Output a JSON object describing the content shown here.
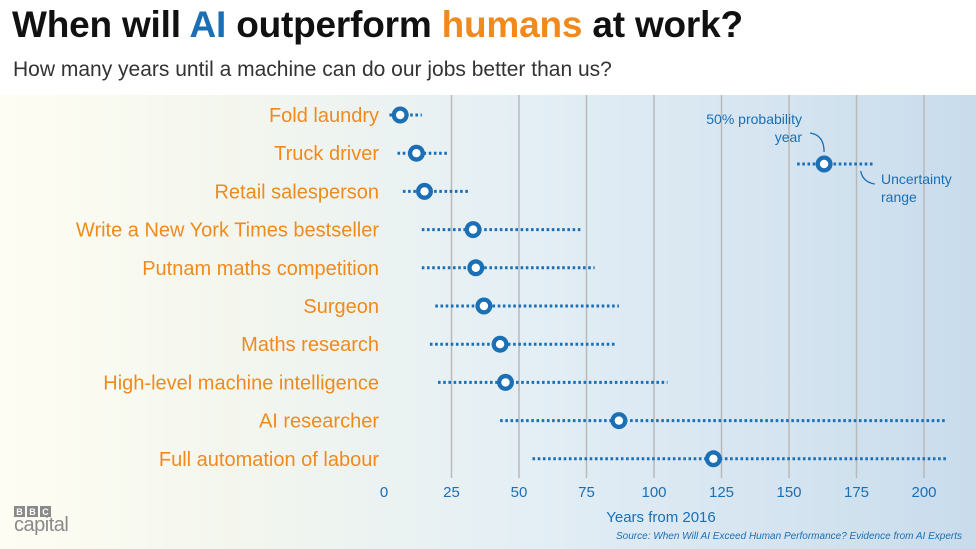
{
  "header": {
    "title_part1": "When will ",
    "title_ai": "AI",
    "title_part2": " outperform ",
    "title_humans": "humans",
    "title_part3": " at work?",
    "subtitle": "How many years until a machine can do our jobs better than us?"
  },
  "colors": {
    "ai_blue": "#1a6fb5",
    "human_orange": "#f08a1d",
    "title_dark": "#111111"
  },
  "chart_data": {
    "type": "scatter",
    "title": "When will AI outperform humans at work?",
    "subtitle": "How many years until a machine can do our jobs better than us?",
    "xlabel": "Years from 2016",
    "ylabel": "",
    "xlim": [
      0,
      210
    ],
    "xticks": [
      0,
      25,
      50,
      75,
      100,
      125,
      150,
      175,
      200
    ],
    "grid": "vertical",
    "categories": [
      "Fold laundry",
      "Truck driver",
      "Retail salesperson",
      "Write a New York Times bestseller",
      "Putnam maths competition",
      "Surgeon",
      "Maths research",
      "High-level machine intelligence",
      "AI researcher",
      "Full automation of labour"
    ],
    "series": [
      {
        "name": "50% probability year",
        "values": [
          6,
          12,
          15,
          33,
          34,
          37,
          43,
          45,
          87,
          122
        ]
      },
      {
        "name": "Uncertainty range",
        "low": [
          2,
          5,
          7,
          14,
          14,
          19,
          17,
          20,
          43,
          55
        ],
        "high": [
          14,
          24,
          32,
          73,
          78,
          87,
          86,
          105,
          208,
          209
        ]
      }
    ],
    "legend": {
      "position": "top-right",
      "point_label_line1": "50% probability",
      "point_label_line2": "year",
      "range_label_line1": "Uncertainty",
      "range_label_line2": "range",
      "example_value": 163,
      "example_low": 153,
      "example_high": 181
    }
  },
  "footer": {
    "logo_letters": [
      "B",
      "B",
      "C"
    ],
    "logo_word": "capital",
    "source": "Source: When Will AI Exceed Human Performance? Evidence from AI Experts"
  }
}
